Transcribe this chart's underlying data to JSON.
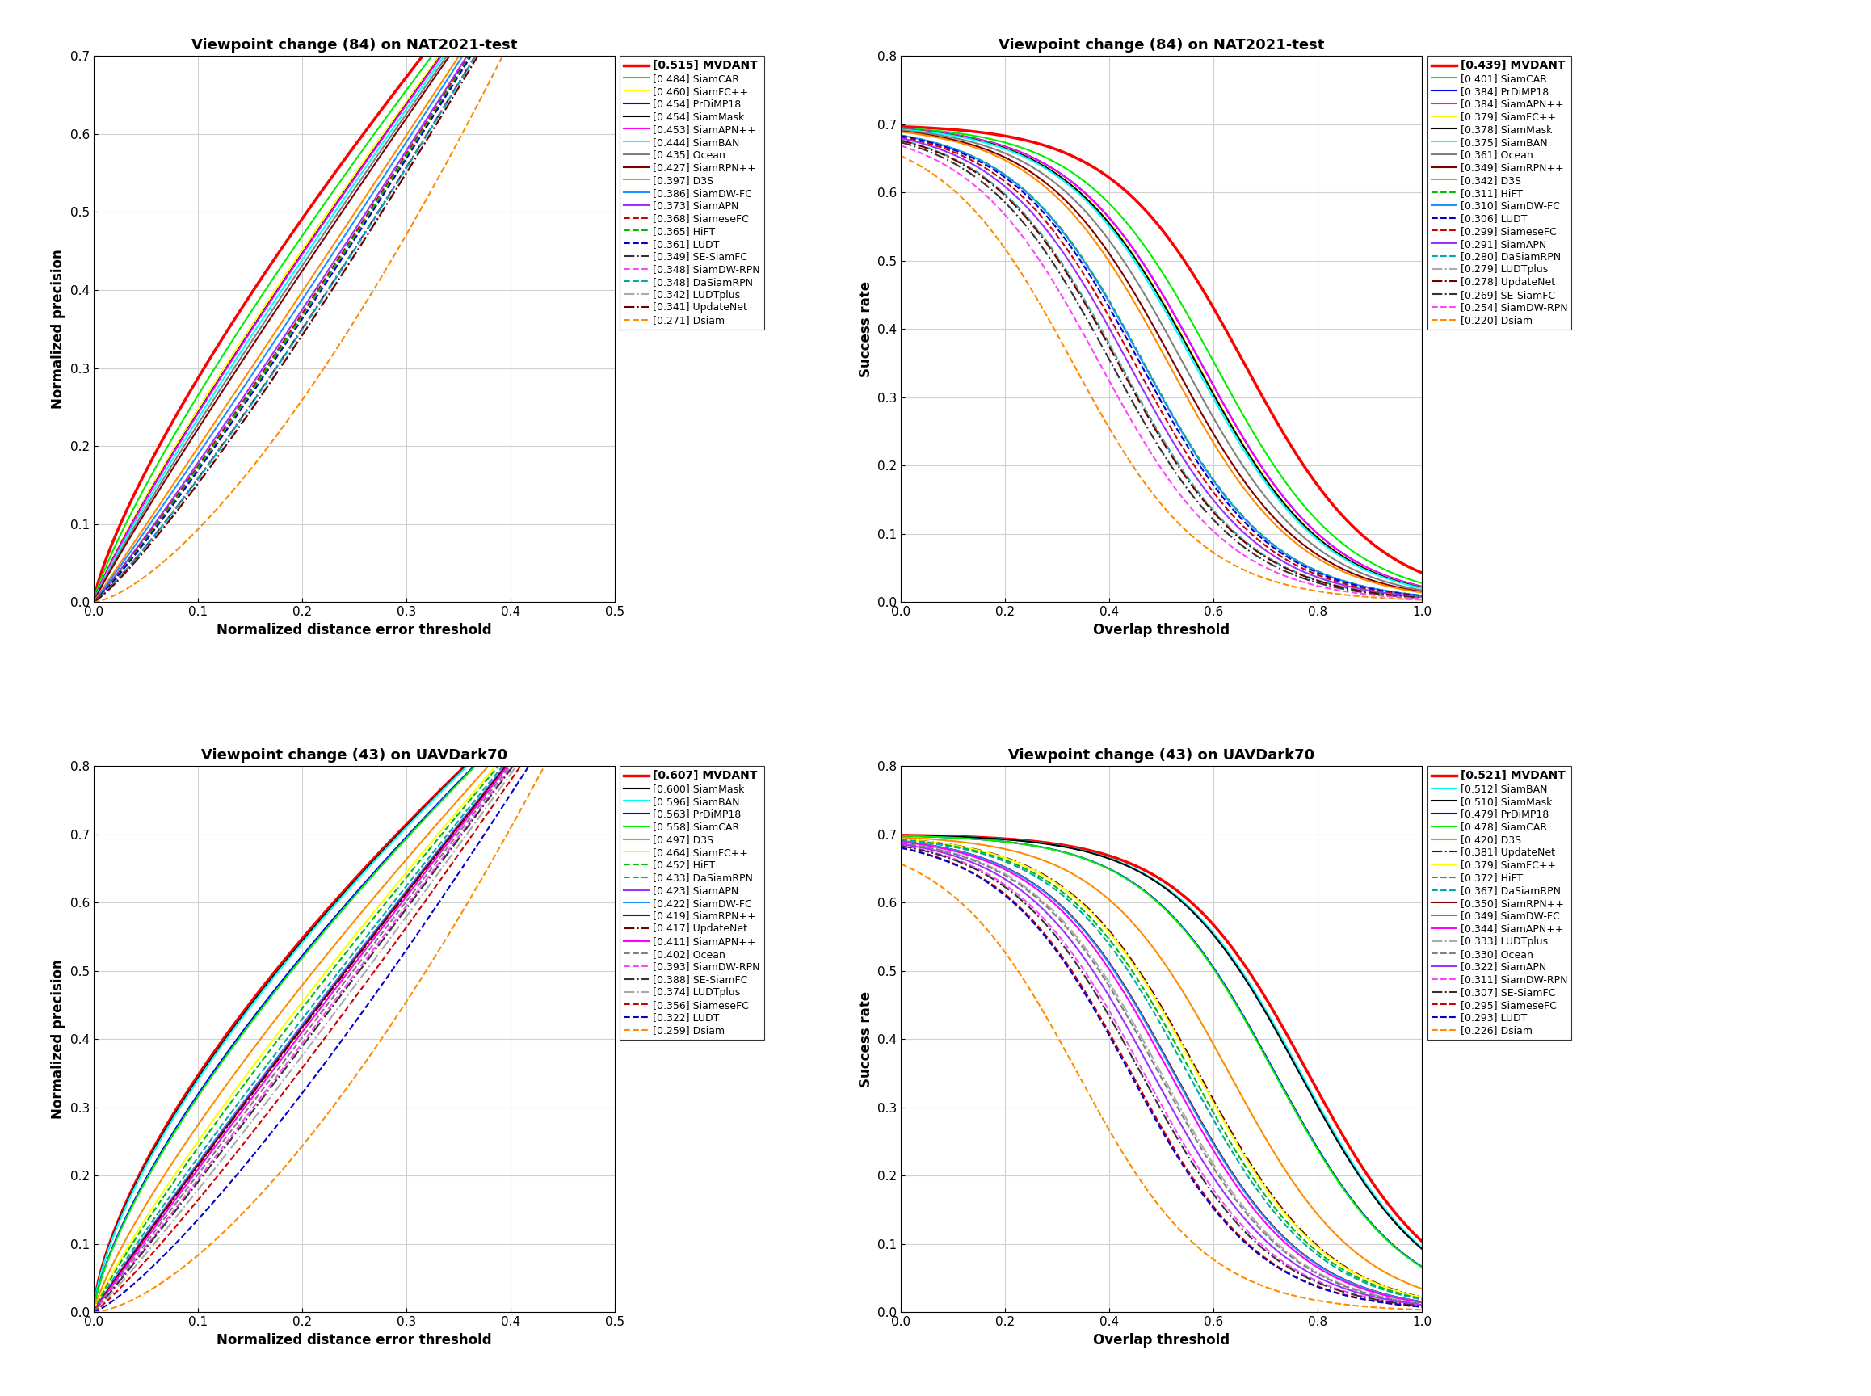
{
  "plots": [
    {
      "title": "Viewpoint change (84) on NAT2021-test",
      "xlabel": "Normalized distance error threshold",
      "ylabel": "Normalized precision",
      "xlim": [
        0,
        0.5
      ],
      "ylim": [
        0,
        0.7
      ],
      "yticks": [
        0.0,
        0.1,
        0.2,
        0.3,
        0.4,
        0.5,
        0.6,
        0.7
      ],
      "xticks": [
        0.0,
        0.1,
        0.2,
        0.3,
        0.4,
        0.5
      ],
      "type": "precision",
      "trackers": [
        {
          "name": "MVDANT",
          "score": 0.515,
          "color": "#ff0000",
          "lw": 2.5,
          "ls": "solid",
          "bold": true
        },
        {
          "name": "SiamCAR",
          "score": 0.484,
          "color": "#00ee00",
          "lw": 1.5,
          "ls": "solid",
          "bold": false
        },
        {
          "name": "SiamFC++",
          "score": 0.46,
          "color": "#ffff00",
          "lw": 1.5,
          "ls": "solid",
          "bold": false
        },
        {
          "name": "PrDiMP18",
          "score": 0.454,
          "color": "#0000ff",
          "lw": 1.5,
          "ls": "solid",
          "bold": false
        },
        {
          "name": "SiamMask",
          "score": 0.454,
          "color": "#000000",
          "lw": 1.5,
          "ls": "solid",
          "bold": false
        },
        {
          "name": "SiamAPN++",
          "score": 0.453,
          "color": "#ff00ff",
          "lw": 1.5,
          "ls": "solid",
          "bold": false
        },
        {
          "name": "SiamBAN",
          "score": 0.444,
          "color": "#00ffff",
          "lw": 1.5,
          "ls": "solid",
          "bold": false
        },
        {
          "name": "Ocean",
          "score": 0.435,
          "color": "#808080",
          "lw": 1.5,
          "ls": "solid",
          "bold": false
        },
        {
          "name": "SiamRPN++",
          "score": 0.427,
          "color": "#800000",
          "lw": 1.5,
          "ls": "solid",
          "bold": false
        },
        {
          "name": "D3S",
          "score": 0.397,
          "color": "#ff8c00",
          "lw": 1.5,
          "ls": "solid",
          "bold": false
        },
        {
          "name": "SiamDW-FC",
          "score": 0.386,
          "color": "#1e90ff",
          "lw": 1.5,
          "ls": "solid",
          "bold": false
        },
        {
          "name": "SiamAPN",
          "score": 0.373,
          "color": "#9b30ff",
          "lw": 1.5,
          "ls": "solid",
          "bold": false
        },
        {
          "name": "SiameseFC",
          "score": 0.368,
          "color": "#cc0000",
          "lw": 1.5,
          "ls": "dashed",
          "bold": false
        },
        {
          "name": "HiFT",
          "score": 0.365,
          "color": "#00bb00",
          "lw": 1.5,
          "ls": "dashed",
          "bold": false
        },
        {
          "name": "LUDT",
          "score": 0.361,
          "color": "#0000cc",
          "lw": 1.5,
          "ls": "dashed",
          "bold": false
        },
        {
          "name": "SE-SiamFC",
          "score": 0.349,
          "color": "#333333",
          "lw": 1.5,
          "ls": "dashdot",
          "bold": false
        },
        {
          "name": "SiamDW-RPN",
          "score": 0.348,
          "color": "#ff44ff",
          "lw": 1.5,
          "ls": "dashed",
          "bold": false
        },
        {
          "name": "DaSiamRPN",
          "score": 0.348,
          "color": "#00aaaa",
          "lw": 1.5,
          "ls": "dashed",
          "bold": false
        },
        {
          "name": "LUDTplus",
          "score": 0.342,
          "color": "#aaaaaa",
          "lw": 1.5,
          "ls": "dashdot",
          "bold": false
        },
        {
          "name": "UpdateNet",
          "score": 0.341,
          "color": "#6b0000",
          "lw": 1.5,
          "ls": "dashdot",
          "bold": false
        },
        {
          "name": "Dsiam",
          "score": 0.271,
          "color": "#ff8c00",
          "lw": 1.5,
          "ls": "dashed",
          "bold": false
        }
      ]
    },
    {
      "title": "Viewpoint change (84) on NAT2021-test",
      "xlabel": "Overlap threshold",
      "ylabel": "Success rate",
      "xlim": [
        0,
        1.0
      ],
      "ylim": [
        0,
        0.8
      ],
      "yticks": [
        0.0,
        0.1,
        0.2,
        0.3,
        0.4,
        0.5,
        0.6,
        0.7,
        0.8
      ],
      "xticks": [
        0.0,
        0.2,
        0.4,
        0.6,
        0.8,
        1.0
      ],
      "type": "success",
      "trackers": [
        {
          "name": "MVDANT",
          "score": 0.439,
          "color": "#ff0000",
          "lw": 2.5,
          "ls": "solid",
          "bold": true
        },
        {
          "name": "SiamCAR",
          "score": 0.401,
          "color": "#00ee00",
          "lw": 1.5,
          "ls": "solid",
          "bold": false
        },
        {
          "name": "PrDiMP18",
          "score": 0.384,
          "color": "#0000ff",
          "lw": 1.5,
          "ls": "solid",
          "bold": false
        },
        {
          "name": "SiamAPN++",
          "score": 0.384,
          "color": "#ff00ff",
          "lw": 1.5,
          "ls": "solid",
          "bold": false
        },
        {
          "name": "SiamFC++",
          "score": 0.379,
          "color": "#ffff00",
          "lw": 1.5,
          "ls": "solid",
          "bold": false
        },
        {
          "name": "SiamMask",
          "score": 0.378,
          "color": "#000000",
          "lw": 1.5,
          "ls": "solid",
          "bold": false
        },
        {
          "name": "SiamBAN",
          "score": 0.375,
          "color": "#00ffff",
          "lw": 1.5,
          "ls": "solid",
          "bold": false
        },
        {
          "name": "Ocean",
          "score": 0.361,
          "color": "#808080",
          "lw": 1.5,
          "ls": "solid",
          "bold": false
        },
        {
          "name": "SiamRPN++",
          "score": 0.349,
          "color": "#800000",
          "lw": 1.5,
          "ls": "solid",
          "bold": false
        },
        {
          "name": "D3S",
          "score": 0.342,
          "color": "#ff8c00",
          "lw": 1.5,
          "ls": "solid",
          "bold": false
        },
        {
          "name": "HiFT",
          "score": 0.311,
          "color": "#00bb00",
          "lw": 1.5,
          "ls": "dashed",
          "bold": false
        },
        {
          "name": "SiamDW-FC",
          "score": 0.31,
          "color": "#1e90ff",
          "lw": 1.5,
          "ls": "solid",
          "bold": false
        },
        {
          "name": "LUDT",
          "score": 0.306,
          "color": "#0000cc",
          "lw": 1.5,
          "ls": "dashed",
          "bold": false
        },
        {
          "name": "SiameseFC",
          "score": 0.299,
          "color": "#cc0000",
          "lw": 1.5,
          "ls": "dashed",
          "bold": false
        },
        {
          "name": "SiamAPN",
          "score": 0.291,
          "color": "#9b30ff",
          "lw": 1.5,
          "ls": "solid",
          "bold": false
        },
        {
          "name": "DaSiamRPN",
          "score": 0.28,
          "color": "#00aaaa",
          "lw": 1.5,
          "ls": "dashed",
          "bold": false
        },
        {
          "name": "LUDTplus",
          "score": 0.279,
          "color": "#aaaaaa",
          "lw": 1.5,
          "ls": "dashdot",
          "bold": false
        },
        {
          "name": "UpdateNet",
          "score": 0.278,
          "color": "#6b0000",
          "lw": 1.5,
          "ls": "dashdot",
          "bold": false
        },
        {
          "name": "SE-SiamFC",
          "score": 0.269,
          "color": "#333333",
          "lw": 1.5,
          "ls": "dashdot",
          "bold": false
        },
        {
          "name": "SiamDW-RPN",
          "score": 0.254,
          "color": "#ff44ff",
          "lw": 1.5,
          "ls": "dashed",
          "bold": false
        },
        {
          "name": "Dsiam",
          "score": 0.22,
          "color": "#ff8c00",
          "lw": 1.5,
          "ls": "dashed",
          "bold": false
        }
      ]
    },
    {
      "title": "Viewpoint change (43) on UAVDark70",
      "xlabel": "Normalized distance error threshold",
      "ylabel": "Normalized precision",
      "xlim": [
        0,
        0.5
      ],
      "ylim": [
        0,
        0.8
      ],
      "yticks": [
        0.0,
        0.1,
        0.2,
        0.3,
        0.4,
        0.5,
        0.6,
        0.7,
        0.8
      ],
      "xticks": [
        0.0,
        0.1,
        0.2,
        0.3,
        0.4,
        0.5
      ],
      "type": "precision",
      "trackers": [
        {
          "name": "MVDANT",
          "score": 0.607,
          "color": "#ff0000",
          "lw": 2.5,
          "ls": "solid",
          "bold": true
        },
        {
          "name": "SiamMask",
          "score": 0.6,
          "color": "#000000",
          "lw": 1.5,
          "ls": "solid",
          "bold": false
        },
        {
          "name": "SiamBAN",
          "score": 0.596,
          "color": "#00ffff",
          "lw": 1.5,
          "ls": "solid",
          "bold": false
        },
        {
          "name": "PrDiMP18",
          "score": 0.563,
          "color": "#0000ff",
          "lw": 1.5,
          "ls": "solid",
          "bold": false
        },
        {
          "name": "SiamCAR",
          "score": 0.558,
          "color": "#00ee00",
          "lw": 1.5,
          "ls": "solid",
          "bold": false
        },
        {
          "name": "D3S",
          "score": 0.497,
          "color": "#ff8c00",
          "lw": 1.5,
          "ls": "solid",
          "bold": false
        },
        {
          "name": "SiamFC++",
          "score": 0.464,
          "color": "#ffff00",
          "lw": 1.5,
          "ls": "solid",
          "bold": false
        },
        {
          "name": "HiFT",
          "score": 0.452,
          "color": "#00bb00",
          "lw": 1.5,
          "ls": "dashed",
          "bold": false
        },
        {
          "name": "DaSiamRPN",
          "score": 0.433,
          "color": "#00aaaa",
          "lw": 1.5,
          "ls": "dashed",
          "bold": false
        },
        {
          "name": "SiamAPN",
          "score": 0.423,
          "color": "#9b30ff",
          "lw": 1.5,
          "ls": "solid",
          "bold": false
        },
        {
          "name": "SiamDW-FC",
          "score": 0.422,
          "color": "#1e90ff",
          "lw": 1.5,
          "ls": "solid",
          "bold": false
        },
        {
          "name": "SiamRPN++",
          "score": 0.419,
          "color": "#800000",
          "lw": 1.5,
          "ls": "solid",
          "bold": false
        },
        {
          "name": "UpdateNet",
          "score": 0.417,
          "color": "#6b0000",
          "lw": 1.5,
          "ls": "dashdot",
          "bold": false
        },
        {
          "name": "SiamAPN++",
          "score": 0.411,
          "color": "#ff00ff",
          "lw": 1.5,
          "ls": "solid",
          "bold": false
        },
        {
          "name": "Ocean",
          "score": 0.402,
          "color": "#808080",
          "lw": 1.5,
          "ls": "dashed",
          "bold": false
        },
        {
          "name": "SiamDW-RPN",
          "score": 0.393,
          "color": "#ff44ff",
          "lw": 1.5,
          "ls": "dashed",
          "bold": false
        },
        {
          "name": "SE-SiamFC",
          "score": 0.388,
          "color": "#333333",
          "lw": 1.5,
          "ls": "dashdot",
          "bold": false
        },
        {
          "name": "LUDTplus",
          "score": 0.374,
          "color": "#aaaaaa",
          "lw": 1.5,
          "ls": "dashdot",
          "bold": false
        },
        {
          "name": "SiameseFC",
          "score": 0.356,
          "color": "#cc0000",
          "lw": 1.5,
          "ls": "dashed",
          "bold": false
        },
        {
          "name": "LUDT",
          "score": 0.322,
          "color": "#0000cc",
          "lw": 1.5,
          "ls": "dashed",
          "bold": false
        },
        {
          "name": "Dsiam",
          "score": 0.259,
          "color": "#ff8c00",
          "lw": 1.5,
          "ls": "dashed",
          "bold": false
        }
      ]
    },
    {
      "title": "Viewpoint change (43) on UAVDark70",
      "xlabel": "Overlap threshold",
      "ylabel": "Success rate",
      "xlim": [
        0,
        1.0
      ],
      "ylim": [
        0,
        0.8
      ],
      "yticks": [
        0.0,
        0.1,
        0.2,
        0.3,
        0.4,
        0.5,
        0.6,
        0.7,
        0.8
      ],
      "xticks": [
        0.0,
        0.2,
        0.4,
        0.6,
        0.8,
        1.0
      ],
      "type": "success",
      "trackers": [
        {
          "name": "MVDANT",
          "score": 0.521,
          "color": "#ff0000",
          "lw": 2.5,
          "ls": "solid",
          "bold": true
        },
        {
          "name": "SiamBAN",
          "score": 0.512,
          "color": "#00ffff",
          "lw": 1.5,
          "ls": "solid",
          "bold": false
        },
        {
          "name": "SiamMask",
          "score": 0.51,
          "color": "#000000",
          "lw": 1.5,
          "ls": "solid",
          "bold": false
        },
        {
          "name": "PrDiMP18",
          "score": 0.479,
          "color": "#0000ff",
          "lw": 1.5,
          "ls": "solid",
          "bold": false
        },
        {
          "name": "SiamCAR",
          "score": 0.478,
          "color": "#00ee00",
          "lw": 1.5,
          "ls": "solid",
          "bold": false
        },
        {
          "name": "D3S",
          "score": 0.42,
          "color": "#ff8c00",
          "lw": 1.5,
          "ls": "solid",
          "bold": false
        },
        {
          "name": "UpdateNet",
          "score": 0.381,
          "color": "#6b0000",
          "lw": 1.5,
          "ls": "dashdot",
          "bold": false
        },
        {
          "name": "SiamFC++",
          "score": 0.379,
          "color": "#ffff00",
          "lw": 1.5,
          "ls": "solid",
          "bold": false
        },
        {
          "name": "HiFT",
          "score": 0.372,
          "color": "#00bb00",
          "lw": 1.5,
          "ls": "dashed",
          "bold": false
        },
        {
          "name": "DaSiamRPN",
          "score": 0.367,
          "color": "#00aaaa",
          "lw": 1.5,
          "ls": "dashed",
          "bold": false
        },
        {
          "name": "SiamRPN++",
          "score": 0.35,
          "color": "#800000",
          "lw": 1.5,
          "ls": "solid",
          "bold": false
        },
        {
          "name": "SiamDW-FC",
          "score": 0.349,
          "color": "#1e90ff",
          "lw": 1.5,
          "ls": "solid",
          "bold": false
        },
        {
          "name": "SiamAPN++",
          "score": 0.344,
          "color": "#ff00ff",
          "lw": 1.5,
          "ls": "solid",
          "bold": false
        },
        {
          "name": "LUDTplus",
          "score": 0.333,
          "color": "#aaaaaa",
          "lw": 1.5,
          "ls": "dashdot",
          "bold": false
        },
        {
          "name": "Ocean",
          "score": 0.33,
          "color": "#808080",
          "lw": 1.5,
          "ls": "dashed",
          "bold": false
        },
        {
          "name": "SiamAPN",
          "score": 0.322,
          "color": "#9b30ff",
          "lw": 1.5,
          "ls": "solid",
          "bold": false
        },
        {
          "name": "SiamDW-RPN",
          "score": 0.311,
          "color": "#ff44ff",
          "lw": 1.5,
          "ls": "dashed",
          "bold": false
        },
        {
          "name": "SE-SiamFC",
          "score": 0.307,
          "color": "#333333",
          "lw": 1.5,
          "ls": "dashdot",
          "bold": false
        },
        {
          "name": "SiameseFC",
          "score": 0.295,
          "color": "#cc0000",
          "lw": 1.5,
          "ls": "dashed",
          "bold": false
        },
        {
          "name": "LUDT",
          "score": 0.293,
          "color": "#0000cc",
          "lw": 1.5,
          "ls": "dashed",
          "bold": false
        },
        {
          "name": "Dsiam",
          "score": 0.226,
          "color": "#ff8c00",
          "lw": 1.5,
          "ls": "dashed",
          "bold": false
        }
      ]
    }
  ]
}
